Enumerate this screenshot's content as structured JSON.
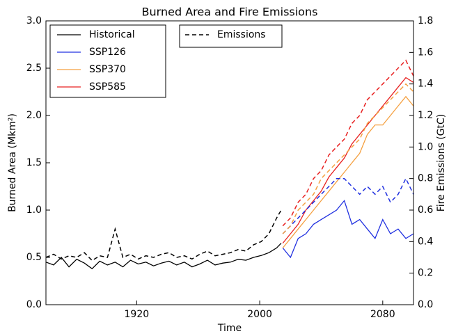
{
  "chart_data": {
    "type": "line",
    "title": "Burned Area and Fire Emissions",
    "x_label": "Time",
    "y_label": "Burned Area (Mkm²)",
    "y2_label": "Fire Emissions (GtC)",
    "emissions_label": "Emissions",
    "legend": "upper left",
    "xlim": [
      1861,
      2100
    ],
    "xticks": [
      1920,
      2000,
      2080
    ],
    "ylim": [
      0,
      3
    ],
    "yticks": [
      {
        "value": 0,
        "label": "0.0"
      },
      0.5,
      {
        "value": 1,
        "label": "1.0"
      },
      1.5,
      {
        "value": 2,
        "label": "2.0"
      },
      2.5,
      {
        "value": 3,
        "label": "3.0"
      }
    ],
    "y2lim": [
      0,
      1.8
    ],
    "y2ticks": [
      {
        "value": 0,
        "label": "0.0"
      },
      0.2,
      0.4,
      0.6,
      0.8,
      {
        "value": 1,
        "label": "1.0"
      },
      1.2,
      1.4,
      1.6,
      1.8
    ],
    "series": [
      {
        "name": "Historical",
        "color": "#000000",
        "x": [
          1861,
          1866,
          1871,
          1876,
          1881,
          1886,
          1891,
          1896,
          1901,
          1906,
          1911,
          1916,
          1921,
          1926,
          1931,
          1936,
          1941,
          1946,
          1951,
          1956,
          1961,
          1966,
          1971,
          1976,
          1981,
          1986,
          1991,
          1996,
          2001,
          2006,
          2011,
          2014
        ],
        "values": [
          0.45,
          0.42,
          0.5,
          0.4,
          0.48,
          0.44,
          0.38,
          0.46,
          0.42,
          0.45,
          0.4,
          0.47,
          0.43,
          0.45,
          0.41,
          0.44,
          0.46,
          0.42,
          0.45,
          0.4,
          0.43,
          0.47,
          0.42,
          0.44,
          0.45,
          0.48,
          0.47,
          0.5,
          0.52,
          0.55,
          0.6,
          0.65
        ],
        "emissions": [
          0.3,
          0.32,
          0.29,
          0.31,
          0.3,
          0.33,
          0.28,
          0.31,
          0.3,
          0.48,
          0.3,
          0.32,
          0.29,
          0.31,
          0.3,
          0.32,
          0.33,
          0.3,
          0.31,
          0.29,
          0.32,
          0.34,
          0.31,
          0.32,
          0.33,
          0.35,
          0.34,
          0.38,
          0.4,
          0.45,
          0.55,
          0.6
        ]
      },
      {
        "name": "SSP126",
        "color": "#2030e0",
        "x": [
          2015,
          2020,
          2025,
          2030,
          2035,
          2040,
          2045,
          2050,
          2055,
          2060,
          2065,
          2070,
          2075,
          2080,
          2085,
          2090,
          2095,
          2100
        ],
        "values": [
          0.6,
          0.5,
          0.7,
          0.75,
          0.85,
          0.9,
          0.95,
          1.0,
          1.1,
          0.85,
          0.9,
          0.8,
          0.7,
          0.9,
          0.75,
          0.8,
          0.7,
          0.75
        ],
        "emissions": [
          0.45,
          0.5,
          0.55,
          0.6,
          0.65,
          0.7,
          0.75,
          0.8,
          0.8,
          0.75,
          0.7,
          0.75,
          0.7,
          0.75,
          0.65,
          0.7,
          0.8,
          0.7
        ]
      },
      {
        "name": "SSP370",
        "color": "#f5a040",
        "x": [
          2015,
          2020,
          2025,
          2030,
          2035,
          2040,
          2045,
          2050,
          2055,
          2060,
          2065,
          2070,
          2075,
          2080,
          2085,
          2090,
          2095,
          2100
        ],
        "values": [
          0.6,
          0.7,
          0.8,
          0.9,
          1.0,
          1.1,
          1.2,
          1.3,
          1.4,
          1.5,
          1.6,
          1.8,
          1.9,
          1.9,
          2.0,
          2.1,
          2.2,
          2.1
        ],
        "emissions": [
          0.45,
          0.5,
          0.6,
          0.65,
          0.7,
          0.8,
          0.85,
          0.9,
          0.95,
          1.0,
          1.05,
          1.15,
          1.2,
          1.25,
          1.3,
          1.35,
          1.4,
          1.35
        ]
      },
      {
        "name": "SSP585",
        "color": "#e82020",
        "x": [
          2015,
          2020,
          2025,
          2030,
          2035,
          2040,
          2045,
          2050,
          2055,
          2060,
          2065,
          2070,
          2075,
          2080,
          2085,
          2090,
          2095,
          2100
        ],
        "values": [
          0.65,
          0.75,
          0.85,
          1.0,
          1.1,
          1.2,
          1.35,
          1.45,
          1.55,
          1.7,
          1.8,
          1.9,
          2.0,
          2.1,
          2.2,
          2.3,
          2.4,
          2.35
        ],
        "emissions": [
          0.5,
          0.55,
          0.65,
          0.7,
          0.8,
          0.85,
          0.95,
          1.0,
          1.05,
          1.15,
          1.2,
          1.3,
          1.35,
          1.4,
          1.45,
          1.5,
          1.55,
          1.45
        ]
      }
    ]
  }
}
